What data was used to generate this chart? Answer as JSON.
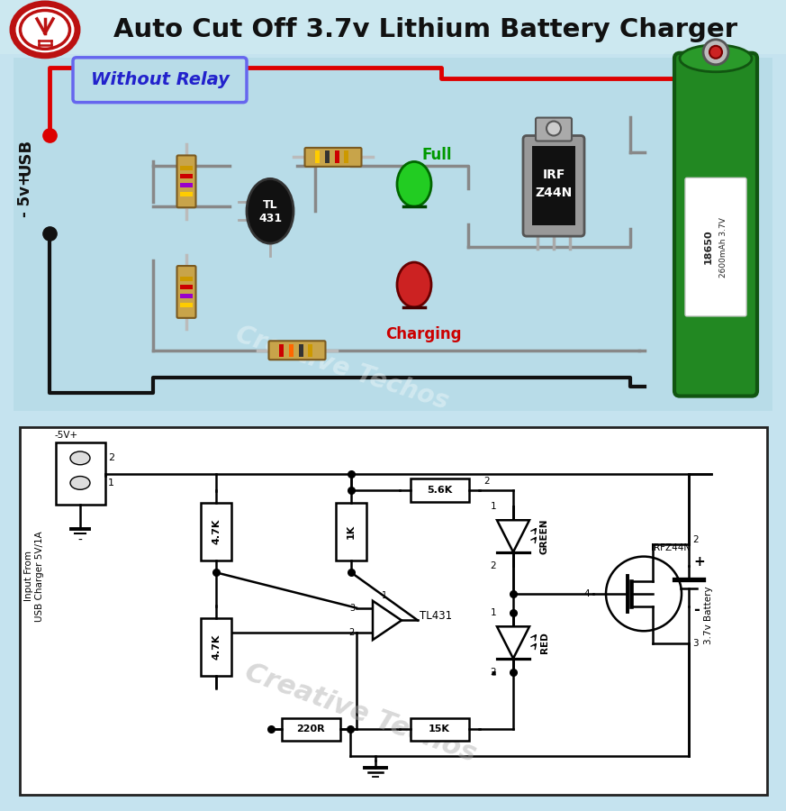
{
  "title": "Auto Cut Off 3.7v Lithium Battery Charger",
  "bg_top": "#cce8f0",
  "bg_bottom": "#ddeef5",
  "without_relay": "Without Relay",
  "watermark": "Creative Techos",
  "colors": {
    "logo_red": "#bb1111",
    "title_black": "#111111",
    "relay_blue": "#2222cc",
    "relay_border": "#6666ff",
    "red_wire": "#dd0000",
    "gray_wire": "#888888",
    "black_wire": "#111111",
    "green_led": "#22cc22",
    "red_led": "#cc2222",
    "mosfet_gray": "#888888",
    "battery_green": "#228822",
    "resistor_tan": "#c8a44a",
    "full_green": "#009900",
    "charging_red": "#cc0000"
  }
}
